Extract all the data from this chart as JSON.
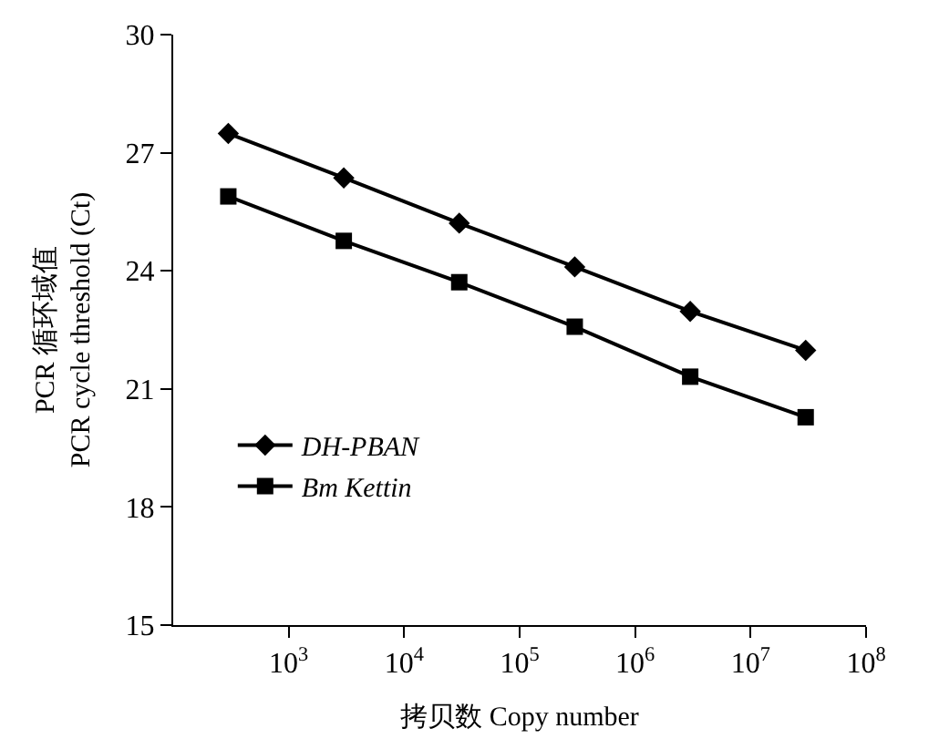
{
  "chart_data": {
    "type": "line",
    "xlabel": "拷贝数 Copy number",
    "ylabel": "PCR 循环域值\nPCR cycle threshold (Ct)",
    "x": [
      300,
      3000,
      30000,
      300000,
      3000000,
      30000000
    ],
    "series": [
      {
        "name": "DH-PBAN",
        "color": "#000000",
        "marker": "diamond",
        "values": [
          27.49,
          26.36,
          25.21,
          24.1,
          22.97,
          21.98
        ]
      },
      {
        "name": "Bm Kettin",
        "color": "#000000",
        "marker": "square",
        "values": [
          25.89,
          24.76,
          23.71,
          22.58,
          21.31,
          20.28
        ]
      }
    ],
    "log": "x",
    "xlim": [
      100,
      100000000
    ],
    "xticks": [
      {
        "value": 1000,
        "label": "10$^{3}$"
      },
      {
        "value": 10000,
        "label": "10$^{4}$"
      },
      {
        "value": 100000,
        "label": "10$^{5}$"
      },
      {
        "value": 1000000,
        "label": "10$^{6}$"
      },
      {
        "value": 10000000,
        "label": "10$^{7}$"
      },
      {
        "value": 100000000,
        "label": "10$^{8}$"
      }
    ],
    "ylim": [
      15,
      30
    ],
    "yticks": [
      15,
      18,
      21,
      24,
      27,
      30
    ],
    "legend": "left",
    "line_style": "solid"
  }
}
